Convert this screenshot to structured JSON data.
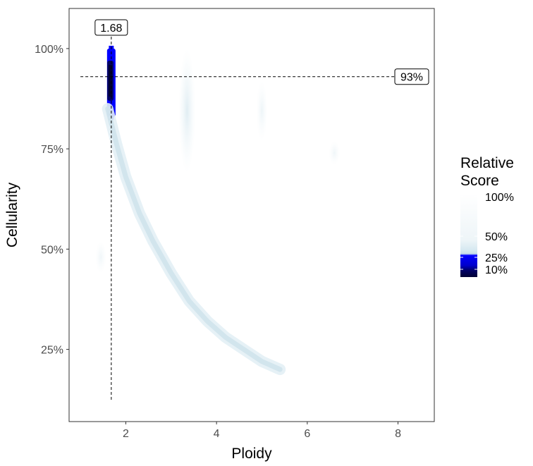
{
  "chart_data": {
    "type": "heatmap",
    "xlabel": "Ploidy",
    "ylabel": "Cellularity",
    "xlim": [
      0.75,
      8.8
    ],
    "ylim": [
      0.07,
      1.1
    ],
    "x_ticks": [
      {
        "value": 2,
        "label": "2"
      },
      {
        "value": 4,
        "label": "4"
      },
      {
        "value": 6,
        "label": "6"
      },
      {
        "value": 8,
        "label": "8"
      }
    ],
    "y_ticks": [
      {
        "value": 0.25,
        "label": "25%"
      },
      {
        "value": 0.5,
        "label": "50%"
      },
      {
        "value": 0.75,
        "label": "75%"
      },
      {
        "value": 1.0,
        "label": "100%"
      }
    ],
    "grid": false,
    "best_ploidy": {
      "value": 1.68,
      "label": "1.68"
    },
    "best_cellularity": {
      "value": 0.93,
      "label": "93%"
    },
    "legend": {
      "title_line1": "Relative",
      "title_line2": "Score",
      "position": "right",
      "labels": [
        {
          "value": 1.0,
          "label": "100%"
        },
        {
          "value": 0.5,
          "label": "50%"
        },
        {
          "value": 0.25,
          "label": "25%"
        },
        {
          "value": 0.1,
          "label": "10%"
        }
      ]
    },
    "colors": {
      "high_score": "#000033",
      "mid_score": "#0000ff",
      "low_score": "#d5e8f0",
      "background": "#ffffff"
    },
    "regions": [
      {
        "x": 1.68,
        "y0": 0.83,
        "y1": 1.0,
        "score": 0.15,
        "tier": "strong"
      },
      {
        "x": 1.66,
        "y0": 0.87,
        "y1": 0.97,
        "score": 0.05,
        "tier": "peak"
      },
      {
        "x": 3.35,
        "y0": 0.69,
        "y1": 1.0,
        "score": 0.55,
        "tier": "faint"
      },
      {
        "x": 5.0,
        "y0": 0.77,
        "y1": 0.92,
        "score": 0.8,
        "tier": "faint"
      },
      {
        "x": 6.6,
        "y0": 0.71,
        "y1": 0.77,
        "score": 0.85,
        "tier": "faint"
      },
      {
        "x": 1.45,
        "y0": 0.44,
        "y1": 0.52,
        "score": 0.85,
        "tier": "faint"
      }
    ],
    "curve": {
      "description": "",
      "x": [
        1.6,
        1.8,
        2.0,
        2.3,
        2.6,
        3.0,
        3.4,
        3.8,
        4.2,
        4.6,
        5.0,
        5.4
      ],
      "y": [
        0.85,
        0.76,
        0.68,
        0.59,
        0.52,
        0.44,
        0.37,
        0.32,
        0.28,
        0.25,
        0.22,
        0.2
      ]
    }
  }
}
